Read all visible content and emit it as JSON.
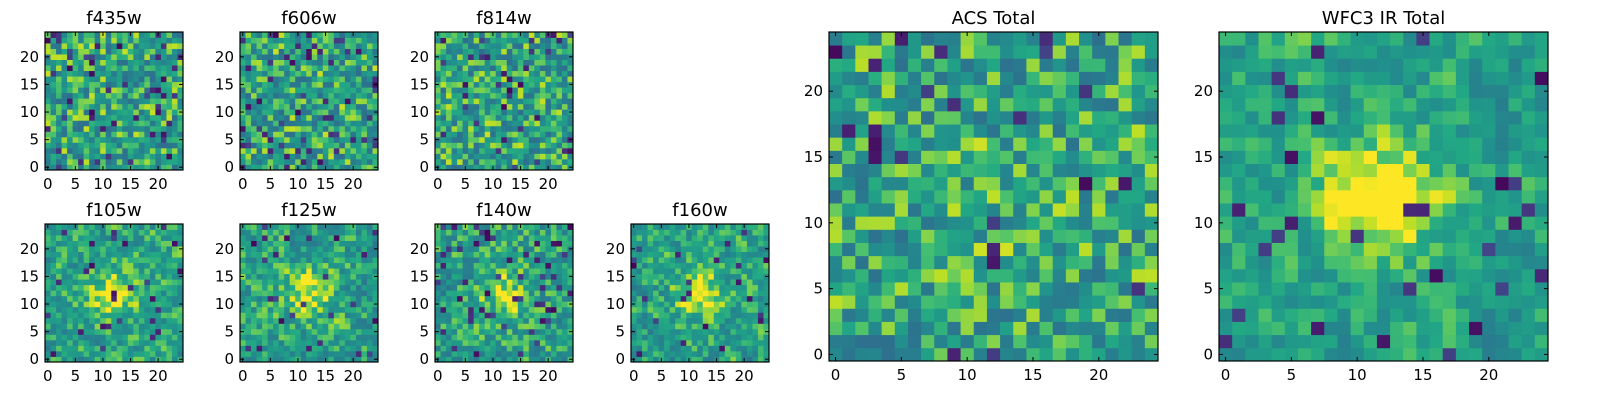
{
  "chart_data": {
    "type": "heatmap",
    "colormap": "viridis",
    "panels": [
      {
        "key": "f435w",
        "title": "f435w",
        "kind": "small",
        "seed": 11,
        "blob": 0.0,
        "holes": 0.08,
        "xticks": [
          "0",
          "5",
          "10",
          "15",
          "20"
        ],
        "yticks": [
          "0",
          "5",
          "10",
          "15",
          "20"
        ],
        "ticks": [
          0,
          5,
          10,
          15,
          20
        ]
      },
      {
        "key": "f606w",
        "title": "f606w",
        "kind": "small",
        "seed": 23,
        "blob": 0.0,
        "holes": 0.08,
        "xticks": [
          "0",
          "5",
          "10",
          "15",
          "20"
        ],
        "yticks": [
          "0",
          "5",
          "10",
          "15",
          "20"
        ],
        "ticks": [
          0,
          5,
          10,
          15,
          20
        ]
      },
      {
        "key": "f814w",
        "title": "f814w",
        "kind": "small",
        "seed": 37,
        "blob": 0.0,
        "holes": 0.06,
        "xticks": [
          "0",
          "5",
          "10",
          "15",
          "20"
        ],
        "yticks": [
          "0",
          "5",
          "10",
          "15",
          "20"
        ],
        "ticks": [
          0,
          5,
          10,
          15,
          20
        ]
      },
      {
        "key": "f105w",
        "title": "f105w",
        "kind": "small",
        "seed": 41,
        "blob": 0.35,
        "holes": 0.05,
        "xticks": [
          "0",
          "5",
          "10",
          "15",
          "20"
        ],
        "yticks": [
          "0",
          "5",
          "10",
          "15",
          "20"
        ],
        "ticks": [
          0,
          5,
          10,
          15,
          20
        ]
      },
      {
        "key": "f125w",
        "title": "f125w",
        "kind": "small",
        "seed": 53,
        "blob": 0.3,
        "holes": 0.05,
        "xticks": [
          "0",
          "5",
          "10",
          "15",
          "20"
        ],
        "yticks": [
          "0",
          "5",
          "10",
          "15",
          "20"
        ],
        "ticks": [
          0,
          5,
          10,
          15,
          20
        ]
      },
      {
        "key": "f140w",
        "title": "f140w",
        "kind": "small",
        "seed": 67,
        "blob": 0.25,
        "holes": 0.06,
        "xticks": [
          "0",
          "5",
          "10",
          "15",
          "20"
        ],
        "yticks": [
          "0",
          "5",
          "10",
          "15",
          "20"
        ],
        "ticks": [
          0,
          5,
          10,
          15,
          20
        ]
      },
      {
        "key": "f160w",
        "title": "f160w",
        "kind": "small",
        "seed": 79,
        "blob": 0.35,
        "holes": 0.05,
        "xticks": [
          "0",
          "5",
          "10",
          "15",
          "20"
        ],
        "yticks": [
          "0",
          "5",
          "10",
          "15",
          "20"
        ],
        "ticks": [
          0,
          5,
          10,
          15,
          20
        ]
      },
      {
        "key": "acs_total",
        "title": "ACS Total",
        "kind": "large",
        "seed": 97,
        "blob": 0.05,
        "holes": 0.04,
        "xticks": [
          "0",
          "5",
          "10",
          "15",
          "20"
        ],
        "yticks": [
          "0",
          "5",
          "10",
          "15",
          "20"
        ],
        "ticks": [
          0,
          5,
          10,
          15,
          20
        ]
      },
      {
        "key": "wfc3_total",
        "title": "WFC3 IR Total",
        "kind": "large",
        "seed": 131,
        "blob": 0.5,
        "holes": 0.05,
        "xticks": [
          "0",
          "5",
          "10",
          "15",
          "20"
        ],
        "yticks": [
          "0",
          "5",
          "10",
          "15",
          "20"
        ],
        "ticks": [
          0,
          5,
          10,
          15,
          20
        ]
      }
    ],
    "grid_size": 25,
    "xlim": [
      -0.5,
      24.5
    ],
    "ylim": [
      -0.5,
      24.5
    ],
    "grid": false,
    "legend": "none"
  }
}
